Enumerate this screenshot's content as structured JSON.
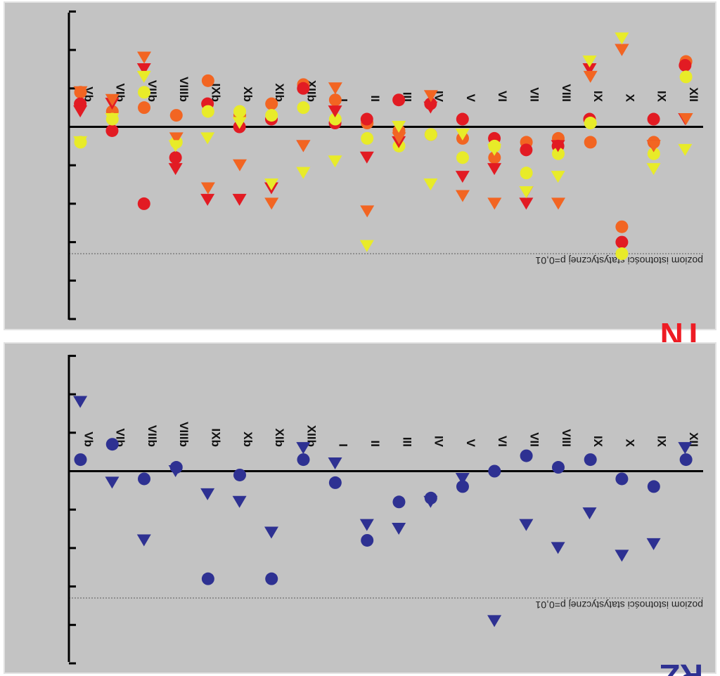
{
  "chart_data": [
    {
      "type": "scatter",
      "title": "TN",
      "title_color": "#ee1c24",
      "categories": [
        "XII",
        "IX",
        "X",
        "IX",
        "VIII",
        "VII",
        "VI",
        "V",
        "IV",
        "III",
        "II",
        "I",
        "XIIb",
        "XIb",
        "Xb",
        "IXb",
        "VIIIb",
        "VIIb",
        "VIb",
        "Vb"
      ],
      "significance_label": "poziom istotności statystycznej p=0,01",
      "significance_level": -3.3,
      "ylim": [
        -5.0,
        3.0
      ],
      "grid": false,
      "colors": {
        "orange": "#f26522",
        "red": "#e21b23",
        "yellow": "#e8eb29"
      },
      "series": [
        {
          "color": "orange",
          "marker": "circle",
          "values": [
            1.7,
            -0.4,
            -2.6,
            -0.4,
            -0.3,
            -0.4,
            -0.8,
            -0.3,
            -0.2,
            -0.1,
            0.1,
            0.7,
            1.1,
            0.6,
            0.3,
            1.2,
            0.3,
            0.5,
            0.4,
            0.9
          ]
        },
        {
          "color": "red",
          "marker": "circle",
          "values": [
            1.6,
            0.2,
            -3.0,
            0.2,
            -0.5,
            -0.6,
            -0.3,
            0.2,
            0.6,
            0.7,
            0.2,
            0.1,
            1.0,
            0.2,
            0.0,
            0.6,
            -0.8,
            -2.0,
            -0.1,
            0.6
          ]
        },
        {
          "color": "yellow",
          "marker": "circle",
          "values": [
            1.3,
            -0.7,
            -3.3,
            0.1,
            -0.7,
            -1.2,
            -0.5,
            -0.8,
            -0.2,
            -0.5,
            -0.3,
            0.2,
            0.5,
            0.3,
            0.4,
            0.4,
            -0.4,
            0.9,
            0.2,
            -0.4
          ]
        },
        {
          "color": "red",
          "marker": "triangle",
          "values": [
            0.2,
            -0.5,
            2.0,
            1.5,
            -0.5,
            -2.0,
            -1.1,
            -1.3,
            0.5,
            -0.4,
            -0.8,
            0.4,
            -0.5,
            -1.6,
            -1.9,
            -1.9,
            -1.1,
            1.5,
            0.6,
            0.4
          ]
        },
        {
          "color": "orange",
          "marker": "triangle",
          "values": [
            0.2,
            -0.5,
            2.0,
            1.3,
            -2.0,
            -1.7,
            -2.0,
            -1.8,
            0.8,
            -0.3,
            -2.2,
            1.0,
            -0.5,
            -2.0,
            -1.0,
            -1.6,
            -0.3,
            1.8,
            0.7,
            0.9
          ]
        },
        {
          "color": "yellow",
          "marker": "triangle",
          "values": [
            -0.6,
            -1.1,
            2.3,
            1.7,
            -1.3,
            -1.7,
            -0.6,
            -0.2,
            -1.5,
            0.0,
            -3.1,
            -0.9,
            -1.2,
            -1.5,
            0.1,
            -0.3,
            -0.5,
            1.3,
            0.2,
            -0.4
          ]
        }
      ]
    },
    {
      "type": "scatter",
      "title": "RZ",
      "title_color": "#2e3192",
      "categories": [
        "XII",
        "IX",
        "X",
        "IX",
        "VIII",
        "VII",
        "VI",
        "V",
        "IV",
        "III",
        "II",
        "I",
        "XIIb",
        "XIb",
        "Xb",
        "IXb",
        "VIIIb",
        "VIIb",
        "VIb",
        "Vb"
      ],
      "significance_label": "poziom istotności statystycznej p=0,01",
      "significance_level": -3.3,
      "ylim": [
        -5.0,
        3.0
      ],
      "grid": false,
      "colors": {
        "navy": "#2e3192"
      },
      "series": [
        {
          "color": "navy",
          "marker": "circle",
          "values": [
            0.3,
            -0.4,
            -0.2,
            0.3,
            0.1,
            0.4,
            0.0,
            -0.4,
            -0.7,
            -0.8,
            -1.8,
            -0.3,
            0.3,
            -2.8,
            -0.1,
            -2.8,
            0.1,
            -0.2,
            0.7,
            0.3
          ]
        },
        {
          "color": "navy",
          "marker": "triangle",
          "values": [
            0.6,
            -1.9,
            -2.2,
            -1.1,
            -2.0,
            -1.4,
            -3.9,
            -0.2,
            -0.8,
            -1.5,
            -1.4,
            0.2,
            0.6,
            -1.6,
            -0.8,
            -0.6,
            0.0,
            -1.8,
            -0.3,
            1.8
          ]
        }
      ]
    }
  ]
}
